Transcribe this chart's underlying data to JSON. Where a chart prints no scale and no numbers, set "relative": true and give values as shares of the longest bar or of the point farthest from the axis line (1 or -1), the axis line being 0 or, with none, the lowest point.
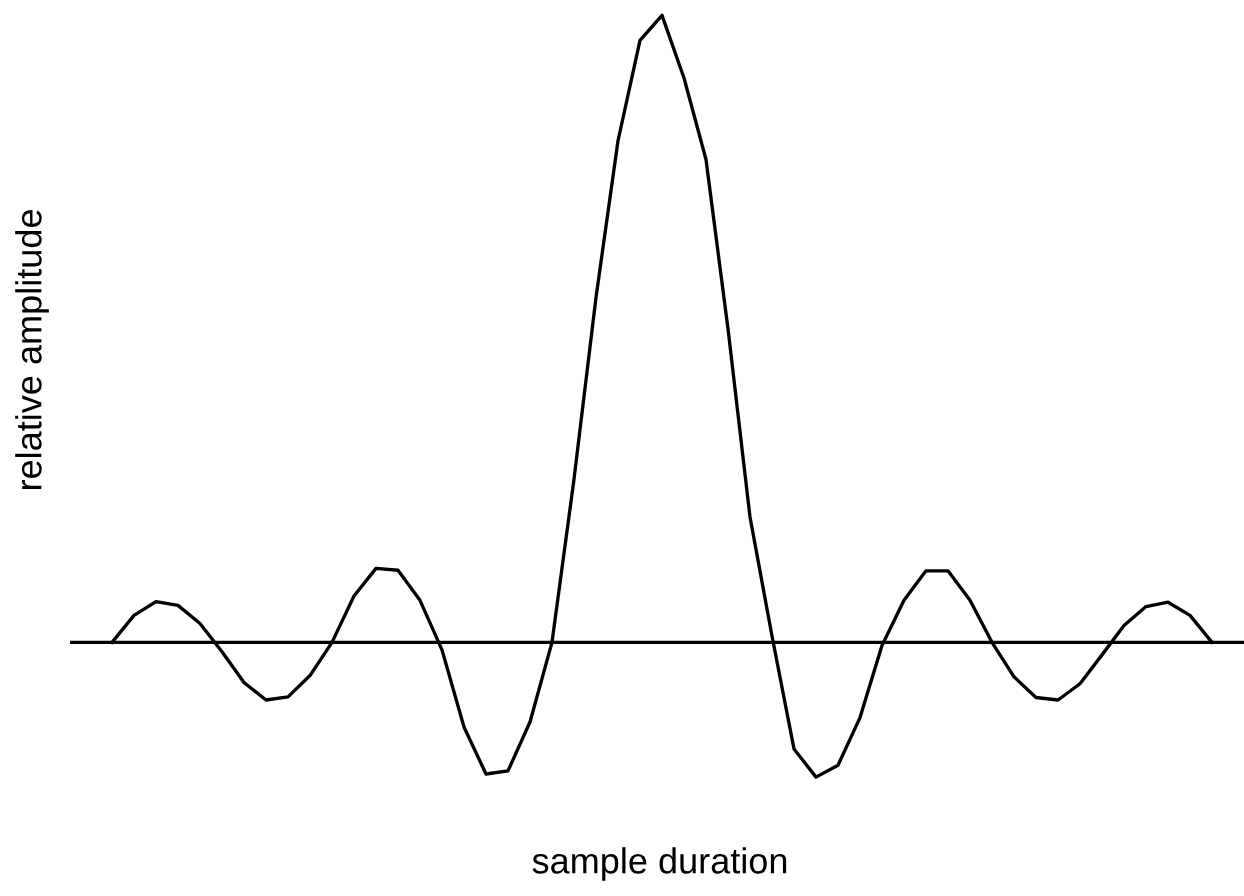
{
  "chart_data": {
    "type": "line",
    "relative": true,
    "xlabel": "sample duration",
    "ylabel": "relative amplitude",
    "categories": [
      null,
      null,
      null,
      null,
      null,
      null,
      null,
      null,
      null,
      null,
      null,
      null,
      null,
      null,
      null,
      null,
      null,
      null,
      null,
      null,
      null,
      null,
      null,
      null,
      null,
      null,
      null,
      null,
      null,
      null,
      null,
      null,
      null,
      null,
      null,
      null,
      null,
      null,
      null,
      null,
      null,
      null,
      null,
      null,
      null,
      null,
      null,
      null,
      null,
      null,
      null
    ],
    "series": [
      {
        "color": "#000000",
        "values": [
          0.0,
          0.043,
          0.065,
          0.059,
          0.03,
          -0.015,
          -0.064,
          -0.092,
          -0.087,
          -0.053,
          0.0,
          0.074,
          0.118,
          0.115,
          0.067,
          -0.012,
          -0.135,
          -0.21,
          -0.205,
          -0.127,
          0.0,
          0.26,
          0.55,
          0.8,
          0.96,
          1.0,
          0.9,
          0.77,
          0.5,
          0.2,
          0.01,
          -0.17,
          -0.215,
          -0.196,
          -0.12,
          -0.005,
          0.067,
          0.114,
          0.114,
          0.067,
          0.0,
          -0.055,
          -0.088,
          -0.092,
          -0.066,
          -0.02,
          0.027,
          0.057,
          0.064,
          0.043,
          0.0
        ]
      }
    ],
    "legend": false,
    "marker": "none",
    "line_style": "solid"
  }
}
